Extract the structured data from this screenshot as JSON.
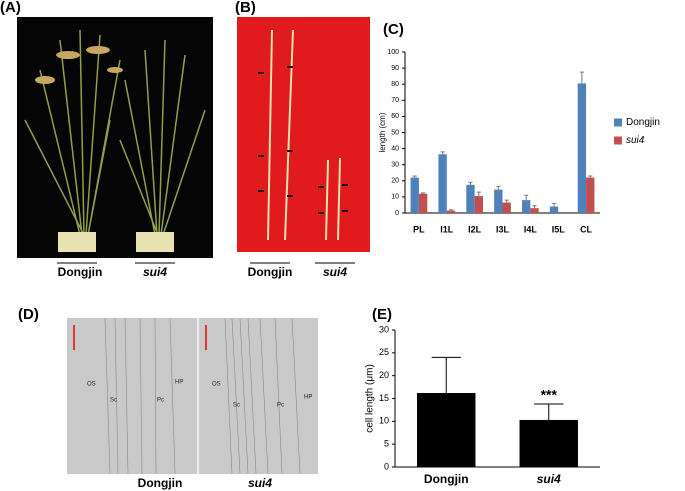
{
  "figure": {
    "panel_labels": [
      "(A)",
      "(B)",
      "(C)",
      "(D)",
      "(E)"
    ],
    "photo_a_labels": [
      "Dongjin",
      "sui4"
    ],
    "photo_b_labels": [
      "Dongjin",
      "sui4"
    ],
    "photo_d_labels": [
      "Dongjin",
      "sui4"
    ],
    "micro_labels_left": [
      "OS",
      "Sc",
      "Pc",
      "HP"
    ],
    "micro_labels_right": [
      "OS",
      "Sc",
      "Pc",
      "HP"
    ]
  },
  "chart_data": [
    {
      "type": "bar",
      "ylabel": "length (cm)",
      "categories": [
        "PL",
        "I1L",
        "I2L",
        "I3L",
        "I4L",
        "I5L",
        "CL"
      ],
      "series": [
        {
          "name": "Dongjin",
          "color": "#4f81bd",
          "values": [
            22,
            36.5,
            17.5,
            14.5,
            8,
            4,
            80.5
          ],
          "errors": [
            1,
            1.5,
            1.5,
            2,
            3,
            2,
            7
          ]
        },
        {
          "name": "sui4",
          "color": "#c0504d",
          "values": [
            12,
            1.5,
            10.5,
            6.5,
            3,
            null,
            22
          ],
          "errors": [
            0.5,
            0.5,
            2.5,
            1.5,
            1.5,
            null,
            1
          ]
        }
      ],
      "ylim": [
        0,
        100
      ],
      "yticks": [
        0,
        10,
        20,
        30,
        40,
        50,
        60,
        70,
        80,
        90,
        100
      ],
      "legend": "right"
    },
    {
      "type": "bar",
      "ylabel": "cell length (μm)",
      "categories": [
        "Dongjin",
        "sui4"
      ],
      "series": [
        {
          "color": "#000000",
          "values": [
            16.2,
            10.3
          ],
          "errors": [
            7.8,
            3.5
          ]
        }
      ],
      "ylim": [
        0,
        30
      ],
      "yticks": [
        0,
        5,
        10,
        15,
        20,
        25,
        30
      ],
      "annotation": "***"
    }
  ]
}
